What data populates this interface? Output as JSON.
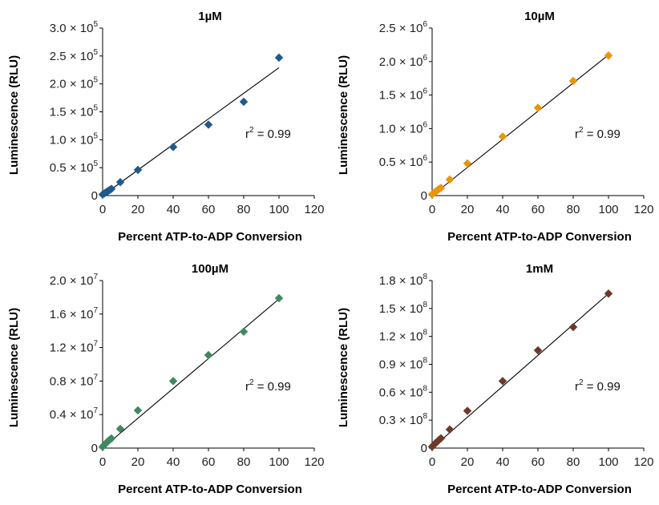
{
  "chart_data": [
    {
      "type": "scatter",
      "title": "1µM",
      "xlabel": "Percent ATP-to-ADP Conversion",
      "ylabel": "Luminescence (RLU)",
      "annotation": "r",
      "annotation_sup": "2",
      "annotation_value": " = 0.99",
      "xlim": [
        0,
        120
      ],
      "ylim": [
        0,
        300000
      ],
      "x_ticks": [
        "0",
        "20",
        "40",
        "60",
        "80",
        "100",
        "120"
      ],
      "y_ticks": [
        {
          "value": 0,
          "label": "0",
          "exp": ""
        },
        {
          "value": 50000,
          "label": "0.5 × 10",
          "exp": "5"
        },
        {
          "value": 100000,
          "label": "1.0 × 10",
          "exp": "5"
        },
        {
          "value": 150000,
          "label": "1.5 × 10",
          "exp": "5"
        },
        {
          "value": 200000,
          "label": "2.0 × 10",
          "exp": "5"
        },
        {
          "value": 250000,
          "label": "2.5 × 10",
          "exp": "5"
        },
        {
          "value": 300000,
          "label": "3.0 × 10",
          "exp": "5"
        }
      ],
      "marker_color": "#1F5A8C",
      "series": [
        {
          "x": [
            0,
            1,
            2,
            3,
            4,
            5,
            10,
            20,
            40,
            60,
            80,
            100
          ],
          "y": [
            2000,
            4000,
            6000,
            8000,
            10000,
            12000,
            24000,
            46000,
            87000,
            127000,
            168000,
            247000
          ]
        }
      ],
      "fit_line": {
        "x": [
          0,
          100
        ],
        "y": [
          0,
          229000
        ]
      }
    },
    {
      "type": "scatter",
      "title": "10µM",
      "xlabel": "Percent ATP-to-ADP Conversion",
      "ylabel": "Luminescence (RLU)",
      "annotation": "r",
      "annotation_sup": "2",
      "annotation_value": " = 0.99",
      "xlim": [
        0,
        120
      ],
      "ylim": [
        0,
        2500000
      ],
      "x_ticks": [
        "0",
        "20",
        "40",
        "60",
        "80",
        "100",
        "120"
      ],
      "y_ticks": [
        {
          "value": 0,
          "label": "0",
          "exp": ""
        },
        {
          "value": 500000,
          "label": "0.5 × 10",
          "exp": "6"
        },
        {
          "value": 1000000,
          "label": "1.0 × 10",
          "exp": "6"
        },
        {
          "value": 1500000,
          "label": "1.5 × 10",
          "exp": "6"
        },
        {
          "value": 2000000,
          "label": "2.0 × 10",
          "exp": "6"
        },
        {
          "value": 2500000,
          "label": "2.5 × 10",
          "exp": "6"
        }
      ],
      "marker_color": "#E8960C",
      "series": [
        {
          "x": [
            0,
            1,
            2,
            3,
            4,
            5,
            10,
            20,
            40,
            60,
            80,
            100
          ],
          "y": [
            20000,
            40000,
            60000,
            80000,
            100000,
            115000,
            240000,
            480000,
            880000,
            1310000,
            1710000,
            2090000
          ]
        }
      ],
      "fit_line": {
        "x": [
          0,
          100
        ],
        "y": [
          0,
          2100000
        ]
      }
    },
    {
      "type": "scatter",
      "title": "100µM",
      "xlabel": "Percent ATP-to-ADP Conversion",
      "ylabel": "Luminescence (RLU)",
      "annotation": "r",
      "annotation_sup": "2",
      "annotation_value": " = 0.99",
      "xlim": [
        0,
        120
      ],
      "ylim": [
        0,
        20000000
      ],
      "x_ticks": [
        "0",
        "20",
        "40",
        "60",
        "80",
        "100",
        "120"
      ],
      "y_ticks": [
        {
          "value": 0,
          "label": "0",
          "exp": ""
        },
        {
          "value": 4000000,
          "label": "0.4 × 10",
          "exp": "7"
        },
        {
          "value": 8000000,
          "label": "0.8 × 10",
          "exp": "7"
        },
        {
          "value": 12000000,
          "label": "1.2 × 10",
          "exp": "7"
        },
        {
          "value": 16000000,
          "label": "1.6 × 10",
          "exp": "7"
        },
        {
          "value": 20000000,
          "label": "2.0 × 10",
          "exp": "7"
        }
      ],
      "marker_color": "#3E8A5E",
      "series": [
        {
          "x": [
            0,
            1,
            2,
            3,
            4,
            5,
            10,
            20,
            40,
            60,
            80,
            100
          ],
          "y": [
            150000,
            400000,
            600000,
            800000,
            1000000,
            1150000,
            2300000,
            4500000,
            8000000,
            11100000,
            13900000,
            17900000
          ]
        }
      ],
      "fit_line": {
        "x": [
          0,
          100
        ],
        "y": [
          0,
          17800000
        ]
      }
    },
    {
      "type": "scatter",
      "title": "1mM",
      "xlabel": "Percent ATP-to-ADP Conversion",
      "ylabel": "Luminescence (RLU)",
      "annotation": "r",
      "annotation_sup": "2",
      "annotation_value": " = 0.99",
      "xlim": [
        0,
        120
      ],
      "ylim": [
        0,
        180000000
      ],
      "x_ticks": [
        "0",
        "20",
        "40",
        "60",
        "80",
        "100",
        "120"
      ],
      "y_ticks": [
        {
          "value": 0,
          "label": "0",
          "exp": ""
        },
        {
          "value": 30000000,
          "label": "0.3 × 10",
          "exp": "8"
        },
        {
          "value": 60000000,
          "label": "0.6 × 10",
          "exp": "8"
        },
        {
          "value": 90000000,
          "label": "0.9 × 10",
          "exp": "8"
        },
        {
          "value": 120000000,
          "label": "1.2 × 10",
          "exp": "8"
        },
        {
          "value": 150000000,
          "label": "1.5 × 10",
          "exp": "8"
        },
        {
          "value": 180000000,
          "label": "1.8 × 10",
          "exp": "8"
        }
      ],
      "marker_color": "#6B3A2A",
      "series": [
        {
          "x": [
            0,
            1,
            2,
            3,
            4,
            5,
            10,
            20,
            40,
            60,
            80,
            100
          ],
          "y": [
            1500000,
            3500000,
            5500000,
            7000000,
            9000000,
            10500000,
            20000000,
            40000000,
            72000000,
            105000000,
            130000000,
            166000000
          ]
        }
      ],
      "fit_line": {
        "x": [
          0,
          100
        ],
        "y": [
          0,
          166000000
        ]
      }
    }
  ]
}
